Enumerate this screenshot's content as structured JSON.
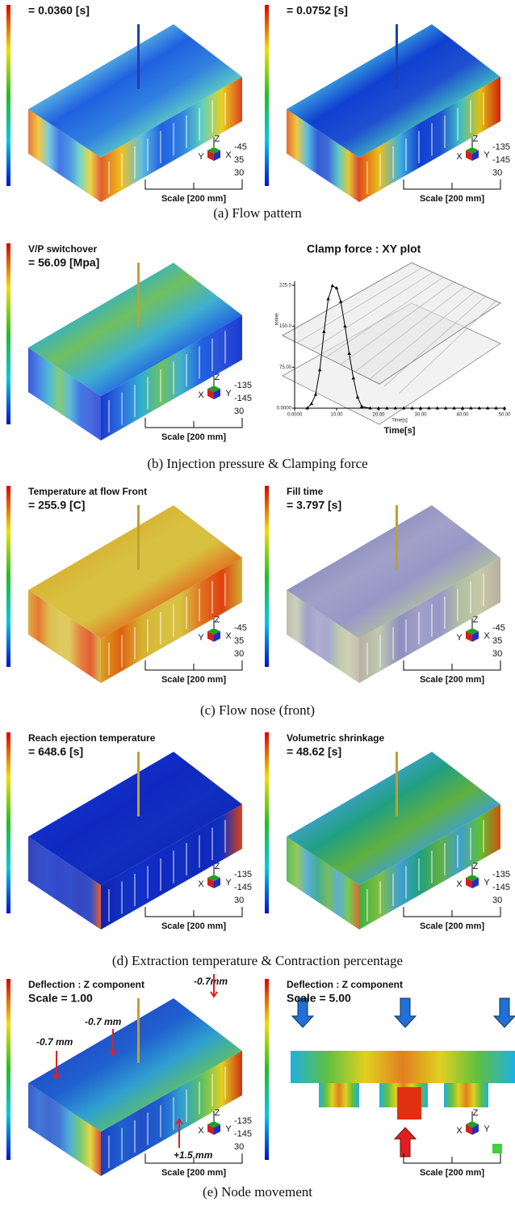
{
  "figure": {
    "rows": [
      {
        "caption": "(a) Flow pattern",
        "panels": [
          {
            "title": [
              "= 0.0360 [s]"
            ],
            "axes": [
              "Z",
              "Y",
              "X"
            ],
            "angles": [
              "-45",
              "35",
              "30"
            ],
            "scale": "Scale [200 mm]"
          },
          {
            "title": [
              "= 0.0752 [s]"
            ],
            "axes": [
              "Z",
              "X",
              "Y"
            ],
            "angles": [
              "-135",
              "-145",
              "30"
            ],
            "scale": "Scale [200 mm]"
          }
        ]
      },
      {
        "caption": "(b) Injection pressure & Clamping force",
        "panels": [
          {
            "title": [
              "V/P switchover",
              "= 56.09 [Mpa]"
            ],
            "axes": [
              "Z",
              "X",
              "Y"
            ],
            "angles": [
              "-135",
              "-145",
              "30"
            ],
            "scale": "Scale [200 mm]"
          },
          {
            "title": [
              "Clamp force : XY plot"
            ],
            "plot": {
              "x": [
                3,
                4,
                5,
                6,
                7,
                8,
                9,
                10,
                11,
                12,
                13,
                14,
                15,
                16,
                18,
                20,
                22,
                24,
                26,
                28,
                30,
                32,
                34,
                36,
                38,
                40,
                42,
                44,
                46,
                48,
                50
              ],
              "values": [
                0,
                8,
                25,
                70,
                140,
                200,
                224,
                220,
                195,
                150,
                100,
                55,
                20,
                3,
                0,
                0,
                0,
                0,
                0,
                0,
                0,
                0,
                0,
                0,
                0,
                0,
                0,
                0,
                0,
                0,
                0
              ],
              "xlim": [
                0,
                50
              ],
              "ylim": [
                0,
                225
              ],
              "xticks": [
                {
                  "value": 0,
                  "label": "0.0000"
                },
                {
                  "value": 10,
                  "label": "10.00"
                },
                {
                  "value": 20,
                  "label": "20.00"
                },
                {
                  "value": 30,
                  "label": "30.00"
                },
                {
                  "value": 40,
                  "label": "40.00"
                },
                {
                  "value": 50,
                  "label": "50.00"
                }
              ],
              "yticks": [
                {
                  "value": 0,
                  "label": "0.0000"
                },
                {
                  "value": 75,
                  "label": "75.00"
                },
                {
                  "value": 150,
                  "label": "150.0"
                },
                {
                  "value": 225,
                  "label": "225.0"
                }
              ],
              "xlabel": "Time[s]",
              "ylabel": "tonne"
            }
          }
        ]
      },
      {
        "caption": "(c) Flow nose (front)",
        "panels": [
          {
            "title": [
              "Temperature at flow Front",
              "= 255.9 [C]"
            ],
            "axes": [
              "Z",
              "Y",
              "X"
            ],
            "angles": [
              "-45",
              "35",
              "30"
            ],
            "scale": "Scale [200 mm]"
          },
          {
            "title": [
              "Fill time",
              "= 3.797 [s]"
            ],
            "axes": [
              "Z",
              "Y",
              "X"
            ],
            "angles": [
              "-45",
              "35",
              "30"
            ],
            "scale": "Scale [200 mm]"
          }
        ]
      },
      {
        "caption": "(d) Extraction temperature & Contraction percentage",
        "panels": [
          {
            "title": [
              "Reach ejection temperature",
              "= 648.6 [s]"
            ],
            "axes": [
              "Z",
              "X",
              "Y"
            ],
            "angles": [
              "-135",
              "-145",
              "30"
            ],
            "scale": "Scale [200 mm]"
          },
          {
            "title": [
              "Volumetric shrinkage",
              "= 48.62 [s]"
            ],
            "axes": [
              "Z",
              "X",
              "Y"
            ],
            "angles": [
              "-135",
              "-145",
              "30"
            ],
            "scale": "Scale [200 mm]"
          }
        ]
      },
      {
        "caption": "(e) Node movement",
        "panels": [
          {
            "title": [
              "Deflection : Z component",
              "Scale = 1.00"
            ],
            "axes": [
              "Z",
              "X",
              "Y"
            ],
            "angles": [
              "-135",
              "-145",
              "30"
            ],
            "scale": "Scale [200 mm]",
            "notes": [
              "-0.7mm",
              "-0.7 mm",
              "-0.7 mm",
              "+1.5 mm"
            ]
          },
          {
            "title": [
              "Deflection : Z component",
              "Scale = 5.00"
            ],
            "axes": [
              "Z",
              "X",
              "Y"
            ],
            "scale": "Scale [200 mm]"
          }
        ]
      }
    ]
  }
}
